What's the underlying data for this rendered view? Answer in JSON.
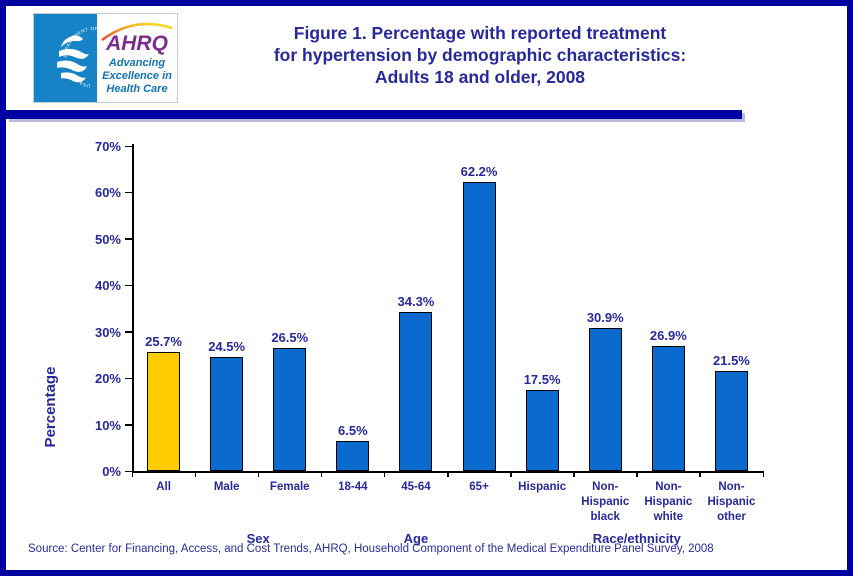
{
  "header": {
    "logo": {
      "hhs_seal_text": "DEPARTMENT OF HEALTH & HUMAN SERVICES · USA",
      "ahrq_acronym": "AHRQ",
      "tagline_line1": "Advancing",
      "tagline_line2": "Excellence in",
      "tagline_line3": "Health Care"
    },
    "title_lines": [
      "Figure 1. Percentage with reported treatment",
      "for hypertension by demographic characteristics:",
      "Adults 18 and older, 2008"
    ]
  },
  "chart_data": {
    "type": "bar",
    "title": "Figure 1. Percentage with reported treatment for hypertension by demographic characteristics: Adults 18 and older, 2008",
    "xlabel": "",
    "ylabel": "Percentage",
    "ylim": [
      0,
      70
    ],
    "ytick_step": 10,
    "ytick_labels": [
      "0%",
      "10%",
      "20%",
      "30%",
      "40%",
      "50%",
      "60%",
      "70%"
    ],
    "grid": false,
    "legend": false,
    "categories": [
      "All",
      "Male",
      "Female",
      "18-44",
      "45-64",
      "65+",
      "Hispanic",
      "Non-Hispanic black",
      "Non-Hispanic white",
      "Non-Hispanic other"
    ],
    "category_label_lines": [
      [
        "All"
      ],
      [
        "Male"
      ],
      [
        "Female"
      ],
      [
        "18-44"
      ],
      [
        "45-64"
      ],
      [
        "65+"
      ],
      [
        "Hispanic"
      ],
      [
        "Non-",
        "Hispanic",
        "black"
      ],
      [
        "Non-",
        "Hispanic",
        "white"
      ],
      [
        "Non-",
        "Hispanic",
        "other"
      ]
    ],
    "values": [
      25.7,
      24.5,
      26.5,
      6.5,
      34.3,
      62.2,
      17.5,
      30.9,
      26.9,
      21.5
    ],
    "value_labels": [
      "25.7%",
      "24.5%",
      "26.5%",
      "6.5%",
      "34.3%",
      "62.2%",
      "17.5%",
      "30.9%",
      "26.9%",
      "21.5%"
    ],
    "bar_colors": [
      "#FFCC00",
      "#0B6ACD",
      "#0B6ACD",
      "#0B6ACD",
      "#0B6ACD",
      "#0B6ACD",
      "#0B6ACD",
      "#0B6ACD",
      "#0B6ACD",
      "#0B6ACD"
    ],
    "group_labels": [
      {
        "label": "Sex",
        "center_units": 2.0
      },
      {
        "label": "Age",
        "center_units": 4.5
      },
      {
        "label": "Race/ethnicity",
        "center_units": 8.0
      }
    ]
  },
  "footer": {
    "source": "Source: Center for Financing, Access, and Cost Trends, AHRQ, Household Component of the Medical Expenditure Panel Survey, 2008"
  },
  "colors": {
    "bar_blue": "#0B6ACD",
    "bar_gold": "#FFCC00",
    "text_navy": "#28289B",
    "border_navy": "#0000A0",
    "logo_blue": "#1583C5",
    "ahrq_purple": "#7B2E8E"
  }
}
